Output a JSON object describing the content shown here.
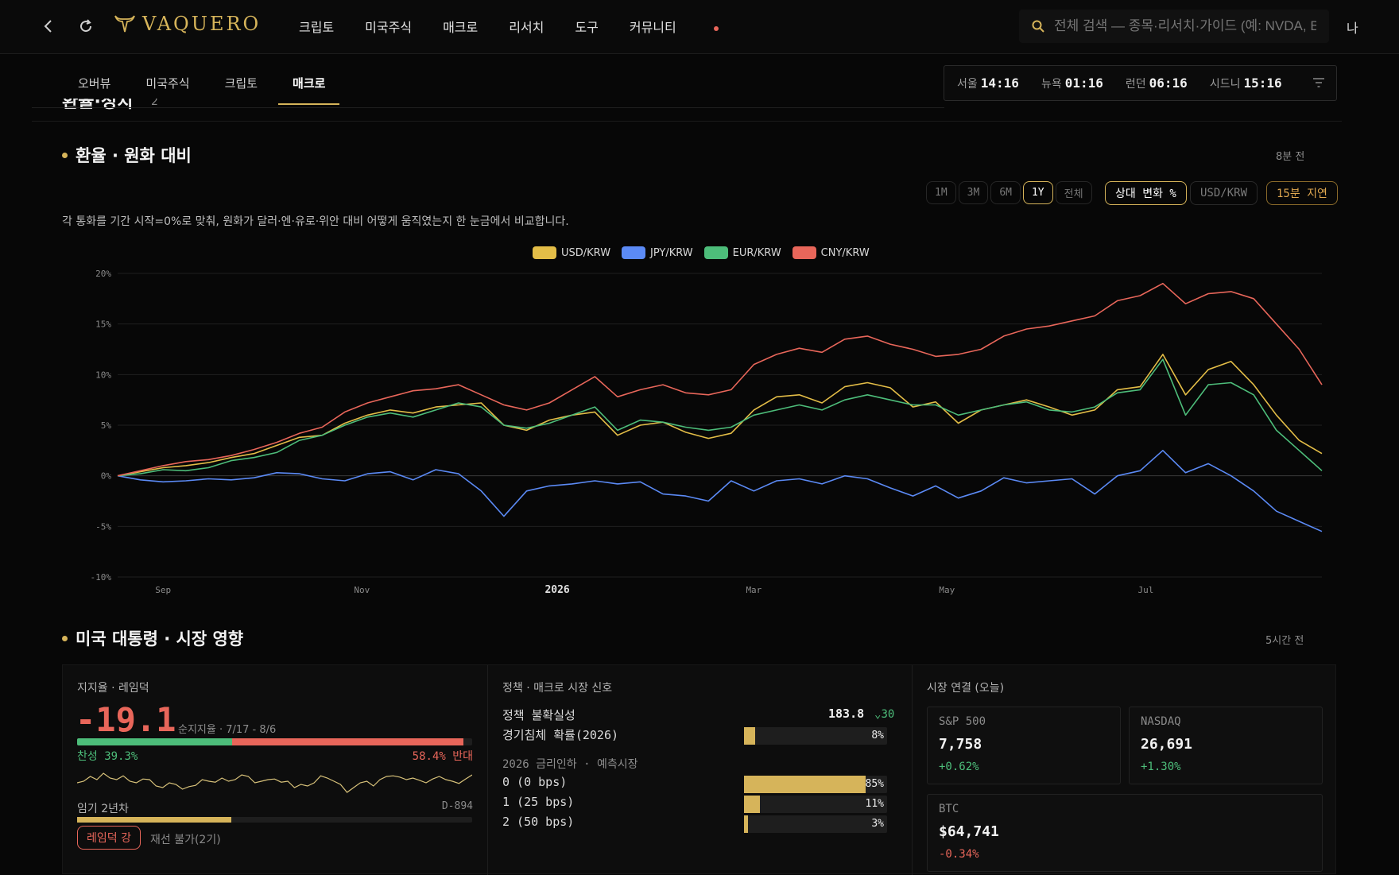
{
  "header": {
    "brand": "VAQUERO",
    "nav": [
      "크립토",
      "미국주식",
      "매크로",
      "리서치",
      "도구",
      "커뮤니티"
    ],
    "search_placeholder": "전체 검색 — 종목·리서치·가이드 (예: NVDA, B",
    "user": "나"
  },
  "subtabs": [
    "오버뷰",
    "미국주식",
    "크립토",
    "매크로"
  ],
  "active_subtab": "매크로",
  "clocks": [
    {
      "city": "서울",
      "time": "14:16"
    },
    {
      "city": "뉴욕",
      "time": "01:16"
    },
    {
      "city": "런던",
      "time": "06:16"
    },
    {
      "city": "시드니",
      "time": "15:16"
    }
  ],
  "partial_title": "환율·정치",
  "partial_count": "2",
  "fx_section": {
    "title": "환율 · 원화 대비",
    "ago": "8분 전",
    "ranges": [
      "1M",
      "3M",
      "6M",
      "1Y",
      "전체"
    ],
    "active_range": "1Y",
    "mode_button": "상대 변화 %",
    "pair_button": "USD/KRW",
    "delay_button": "15분 지연",
    "description": "각 통화를 기간 시작=0%로 맞춰, 원화가 달러·엔·유로·위안 대비 어떻게 움직였는지 한 눈금에서 비교합니다."
  },
  "chart_data": {
    "type": "line",
    "ylim": [
      -10,
      20
    ],
    "y_ticks": [
      "20%",
      "15%",
      "10%",
      "5%",
      "0%",
      "-5%",
      "-10%"
    ],
    "x_ticks": [
      "Sep",
      "Nov",
      "2026",
      "Mar",
      "May",
      "Jul"
    ],
    "x_tick_weeks": [
      4,
      21.5,
      38.7,
      56,
      73,
      90.5
    ],
    "x": [
      0,
      2,
      4,
      6,
      8,
      10,
      12,
      14,
      16,
      18,
      20,
      22,
      24,
      26,
      28,
      30,
      32,
      34,
      36,
      38,
      40,
      42,
      44,
      46,
      48,
      50,
      52,
      54,
      56,
      58,
      60,
      62,
      64,
      66,
      68,
      70,
      72,
      74,
      76,
      78,
      80,
      82,
      84,
      86,
      88,
      90,
      92,
      94,
      96,
      98,
      100,
      102,
      104,
      106
    ],
    "series": [
      {
        "name": "USD/KRW",
        "color": "#e3bd47",
        "values": [
          0,
          0.4,
          0.8,
          1.0,
          1.3,
          1.8,
          2.2,
          3.0,
          3.8,
          4.0,
          5.2,
          6.0,
          6.5,
          6.2,
          6.8,
          7.0,
          7.2,
          5.0,
          4.5,
          5.5,
          6.0,
          6.3,
          4.0,
          5.0,
          5.3,
          4.3,
          3.7,
          4.2,
          6.5,
          7.8,
          8.0,
          7.2,
          8.8,
          9.2,
          8.7,
          6.8,
          7.3,
          5.2,
          6.5,
          7.0,
          7.5,
          6.8,
          6.0,
          6.5,
          8.5,
          8.8,
          12.0,
          8.0,
          10.5,
          11.3,
          9.0,
          6.0,
          3.5,
          2.2
        ]
      },
      {
        "name": "JPY/KRW",
        "color": "#5b8af5",
        "values": [
          0,
          -0.4,
          -0.6,
          -0.5,
          -0.3,
          -0.4,
          -0.2,
          0.3,
          0.2,
          -0.3,
          -0.5,
          0.2,
          0.4,
          -0.4,
          0.6,
          0.2,
          -1.5,
          -4.0,
          -1.5,
          -1.0,
          -0.8,
          -0.5,
          -0.8,
          -0.6,
          -1.8,
          -2.0,
          -2.5,
          -0.5,
          -1.5,
          -0.5,
          -0.3,
          -0.8,
          0.0,
          -0.3,
          -1.2,
          -2.0,
          -1.0,
          -2.2,
          -1.5,
          -0.2,
          -0.7,
          -0.5,
          -0.3,
          -1.8,
          0.0,
          0.5,
          2.5,
          0.3,
          1.2,
          0.0,
          -1.5,
          -3.5,
          -4.5,
          -5.5
        ]
      },
      {
        "name": "EUR/KRW",
        "color": "#4dbd7a",
        "values": [
          0,
          0.2,
          0.6,
          0.5,
          0.8,
          1.5,
          1.8,
          2.3,
          3.5,
          4.0,
          5.0,
          5.8,
          6.2,
          5.8,
          6.5,
          7.2,
          6.8,
          5.0,
          4.7,
          5.2,
          6.0,
          6.8,
          4.5,
          5.5,
          5.3,
          4.8,
          4.5,
          4.8,
          6.0,
          6.5,
          7.0,
          6.5,
          7.5,
          8.0,
          7.5,
          7.0,
          7.0,
          6.0,
          6.5,
          7.0,
          7.3,
          6.5,
          6.3,
          6.8,
          8.2,
          8.5,
          11.5,
          6.0,
          9.0,
          9.2,
          8.0,
          4.5,
          2.5,
          0.5
        ]
      },
      {
        "name": "CNY/KRW",
        "color": "#e8665a",
        "values": [
          0,
          0.5,
          1.0,
          1.4,
          1.6,
          2.0,
          2.6,
          3.3,
          4.2,
          4.8,
          6.3,
          7.2,
          7.8,
          8.4,
          8.6,
          9.0,
          8.0,
          7.0,
          6.5,
          7.2,
          8.5,
          9.8,
          7.8,
          8.5,
          9.0,
          8.2,
          8.0,
          8.5,
          11.0,
          12.0,
          12.6,
          12.2,
          13.5,
          13.8,
          13.0,
          12.5,
          11.8,
          12.0,
          12.5,
          13.8,
          14.5,
          14.8,
          15.3,
          15.8,
          17.3,
          17.8,
          19.0,
          17.0,
          18.0,
          18.2,
          17.5,
          15.0,
          12.5,
          9.0
        ]
      }
    ]
  },
  "president_section": {
    "title": "미국 대통령 · 시장 영향",
    "ago": "5시간 전",
    "approval": {
      "label": "지지율 · 레임덕",
      "net": "-19.1",
      "net_caption": "순지지율 · 7/17 - 8/6",
      "approve": "찬성 39.3%",
      "disapprove": "58.4% 반대",
      "approve_frac": 0.393,
      "disapprove_frac": 0.584,
      "term_label": "임기 2년차",
      "dday": "D-894",
      "term_frac": 0.39,
      "lame_duck_badge": "레임덕 강",
      "reelection": "재선 불가(2기)",
      "trend": [
        0.5,
        0.55,
        0.7,
        0.6,
        0.8,
        0.65,
        0.6,
        0.72,
        0.55,
        0.5,
        0.62,
        0.6,
        0.4,
        0.35,
        0.5,
        0.45,
        0.3,
        0.38,
        0.42,
        0.6,
        0.55,
        0.52,
        0.65,
        0.55,
        0.6,
        0.75,
        0.7,
        0.5,
        0.55,
        0.6,
        0.62,
        0.52,
        0.55,
        0.35,
        0.45,
        0.4,
        0.5,
        0.72,
        0.65,
        0.55,
        0.45,
        0.2,
        0.35,
        0.5,
        0.55,
        0.4,
        0.6,
        0.7,
        0.72,
        0.68,
        0.6,
        0.65,
        0.58,
        0.5,
        0.62,
        0.7,
        0.6,
        0.55,
        0.48,
        0.62,
        0.75
      ]
    },
    "policy": {
      "label": "정책 · 매크로 시장 신호",
      "uncertainty_label": "정책 불확실성",
      "uncertainty_value": "183.8",
      "uncertainty_change": "30",
      "recession_label": "경기침체 확률(2026)",
      "recession_pct": "8%",
      "recession_frac": 0.08,
      "cuts_label": "2026 금리인하 · 예측시장",
      "cuts": [
        {
          "label": "0 (0 bps)",
          "pct": "85%",
          "frac": 0.85
        },
        {
          "label": "1 (25 bps)",
          "pct": "11%",
          "frac": 0.11
        },
        {
          "label": "2 (50 bps)",
          "pct": "3%",
          "frac": 0.03
        }
      ]
    },
    "market": {
      "label": "시장 연결 (오늘)",
      "cards": [
        {
          "name": "S&P 500",
          "value": "7,758",
          "change": "+0.62%",
          "up": true
        },
        {
          "name": "NASDAQ",
          "value": "26,691",
          "change": "+1.30%",
          "up": true
        },
        {
          "name": "BTC",
          "value": "$64,741",
          "change": "-0.34%",
          "up": false
        }
      ]
    }
  },
  "colors": {
    "accent": "#d6b45a",
    "up": "#4dbd7a",
    "down": "#e8665a"
  }
}
